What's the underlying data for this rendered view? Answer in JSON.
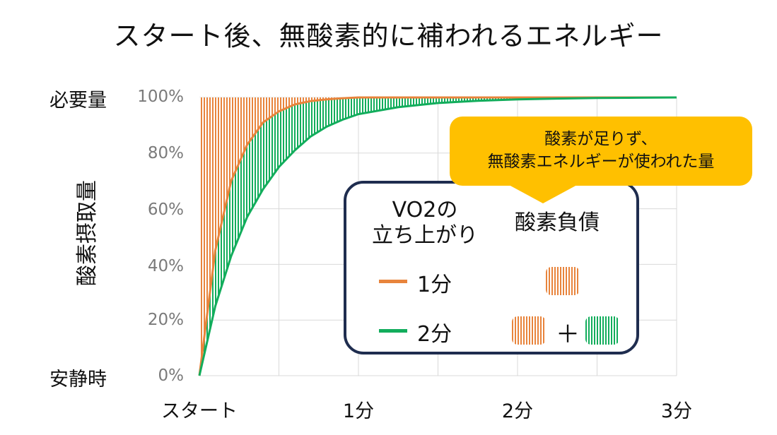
{
  "title": "スタート後、無酸素的に補われるエネルギー",
  "y_axis_label": "酸素摂取量",
  "y_side_labels": {
    "top": "必要量",
    "bottom": "安静時"
  },
  "y_ticks": [
    "100%",
    "80%",
    "60%",
    "40%",
    "20%",
    "0%"
  ],
  "x_ticks": [
    "スタート",
    "1分",
    "2分",
    "3分"
  ],
  "legend": {
    "col1_header_line1": "VO2の",
    "col1_header_line2": "立ち上がり",
    "col2_header": "酸素負債",
    "row1_label": "1分",
    "row2_label": "2分",
    "plus": "＋"
  },
  "callout": {
    "line1": "酸素が足りず、",
    "line2": "無酸素エネルギーが使われた量"
  },
  "colors": {
    "orange": "#e8843c",
    "green": "#12ad5c",
    "navy": "#1f2d4f",
    "callout": "#ffc000",
    "grid": "#d9d9d9"
  },
  "chart_data": {
    "type": "line",
    "x": [
      0,
      0.1,
      0.2,
      0.3,
      0.4,
      0.5,
      0.6,
      0.7,
      0.8,
      0.9,
      1.0,
      1.25,
      1.5,
      1.75,
      2.0,
      2.25,
      2.5,
      2.75,
      3.0
    ],
    "series": [
      {
        "name": "1分",
        "color": "#e8843c",
        "values": [
          0,
          45,
          70,
          83,
          91,
          95,
          97.5,
          98.7,
          99.3,
          99.7,
          100,
          100,
          100,
          100,
          100,
          100,
          100,
          100,
          100
        ]
      },
      {
        "name": "2分",
        "color": "#12ad5c",
        "values": [
          0,
          25,
          43,
          57,
          67,
          75,
          81,
          86,
          89.5,
          92,
          94,
          96.5,
          98,
          98.8,
          99.3,
          99.6,
          99.8,
          99.9,
          100
        ]
      }
    ],
    "requirement_level": 100,
    "xlim": [
      0,
      3
    ],
    "ylim": [
      0,
      100
    ],
    "grid": true
  }
}
